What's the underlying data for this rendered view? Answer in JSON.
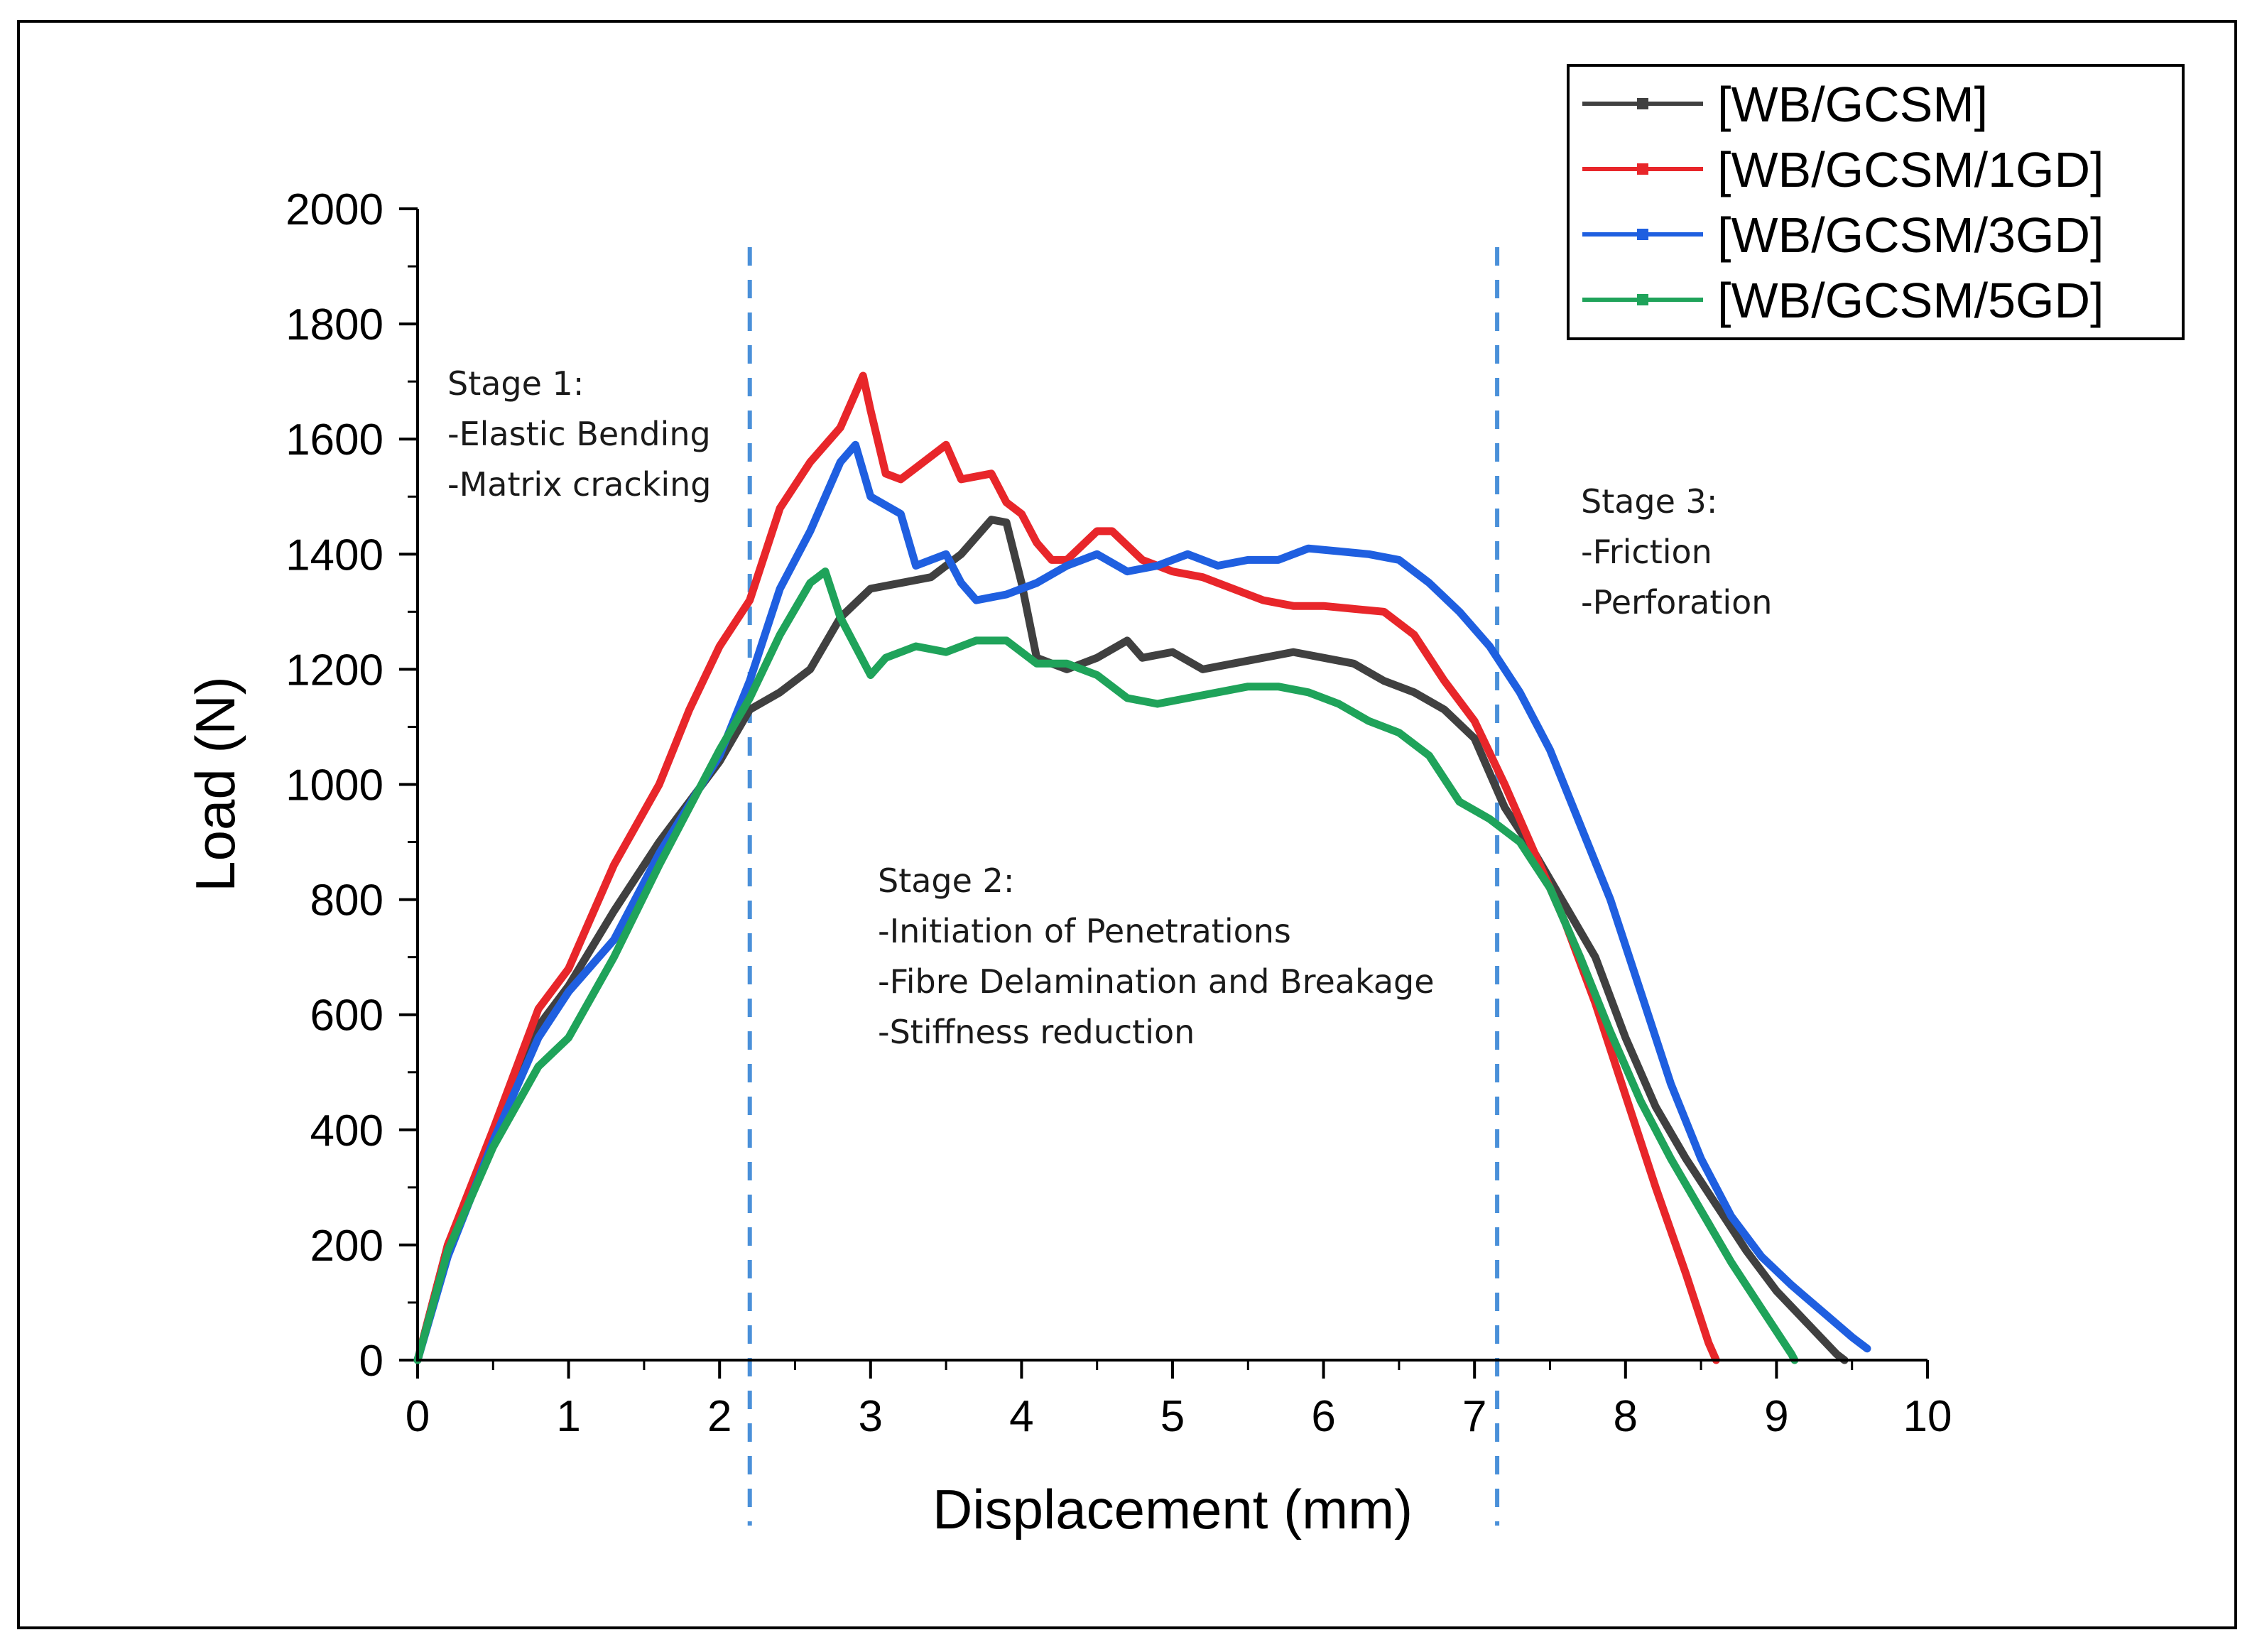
{
  "chart_data": {
    "type": "line",
    "title": "",
    "xlabel": "Displacement (mm)",
    "ylabel": "Load (N)",
    "xlim": [
      0,
      10
    ],
    "ylim": [
      0,
      2000
    ],
    "xticks": [
      "0",
      "1",
      "2",
      "3",
      "4",
      "5",
      "6",
      "7",
      "8",
      "9",
      "10"
    ],
    "yticks": [
      "0",
      "200",
      "400",
      "600",
      "800",
      "1000",
      "1200",
      "1400",
      "1600",
      "1800",
      "2000"
    ],
    "grid": false,
    "legend_position": "top-right",
    "series": [
      {
        "name": "[WB/GCSM]",
        "color": "#404040",
        "points": [
          [
            0,
            0
          ],
          [
            0.2,
            200
          ],
          [
            0.5,
            390
          ],
          [
            0.8,
            580
          ],
          [
            1,
            650
          ],
          [
            1.3,
            780
          ],
          [
            1.6,
            900
          ],
          [
            2,
            1040
          ],
          [
            2.2,
            1130
          ],
          [
            2.4,
            1160
          ],
          [
            2.6,
            1200
          ],
          [
            2.8,
            1290
          ],
          [
            3,
            1340
          ],
          [
            3.2,
            1350
          ],
          [
            3.4,
            1360
          ],
          [
            3.6,
            1400
          ],
          [
            3.8,
            1460
          ],
          [
            3.9,
            1455
          ],
          [
            4,
            1350
          ],
          [
            4.1,
            1220
          ],
          [
            4.3,
            1200
          ],
          [
            4.5,
            1220
          ],
          [
            4.7,
            1250
          ],
          [
            4.8,
            1220
          ],
          [
            5,
            1230
          ],
          [
            5.2,
            1200
          ],
          [
            5.4,
            1210
          ],
          [
            5.6,
            1220
          ],
          [
            5.8,
            1230
          ],
          [
            6,
            1220
          ],
          [
            6.2,
            1210
          ],
          [
            6.4,
            1180
          ],
          [
            6.6,
            1160
          ],
          [
            6.8,
            1130
          ],
          [
            7,
            1080
          ],
          [
            7.2,
            960
          ],
          [
            7.4,
            880
          ],
          [
            7.6,
            790
          ],
          [
            7.8,
            700
          ],
          [
            8,
            560
          ],
          [
            8.2,
            440
          ],
          [
            8.4,
            350
          ],
          [
            8.6,
            270
          ],
          [
            8.8,
            190
          ],
          [
            9,
            120
          ],
          [
            9.2,
            65
          ],
          [
            9.4,
            10
          ],
          [
            9.45,
            0
          ]
        ]
      },
      {
        "name": "[WB/GCSM/1GD]",
        "color": "#e8262a",
        "points": [
          [
            0,
            0
          ],
          [
            0.2,
            200
          ],
          [
            0.5,
            400
          ],
          [
            0.8,
            610
          ],
          [
            1,
            680
          ],
          [
            1.3,
            860
          ],
          [
            1.6,
            1000
          ],
          [
            1.8,
            1130
          ],
          [
            2,
            1240
          ],
          [
            2.2,
            1320
          ],
          [
            2.4,
            1480
          ],
          [
            2.6,
            1560
          ],
          [
            2.8,
            1620
          ],
          [
            2.95,
            1710
          ],
          [
            3,
            1650
          ],
          [
            3.1,
            1540
          ],
          [
            3.2,
            1530
          ],
          [
            3.3,
            1550
          ],
          [
            3.5,
            1590
          ],
          [
            3.6,
            1530
          ],
          [
            3.8,
            1540
          ],
          [
            3.9,
            1490
          ],
          [
            4,
            1470
          ],
          [
            4.1,
            1420
          ],
          [
            4.2,
            1390
          ],
          [
            4.3,
            1390
          ],
          [
            4.5,
            1440
          ],
          [
            4.6,
            1440
          ],
          [
            4.8,
            1390
          ],
          [
            5,
            1370
          ],
          [
            5.2,
            1360
          ],
          [
            5.4,
            1340
          ],
          [
            5.6,
            1320
          ],
          [
            5.8,
            1310
          ],
          [
            6,
            1310
          ],
          [
            6.2,
            1305
          ],
          [
            6.4,
            1300
          ],
          [
            6.6,
            1260
          ],
          [
            6.8,
            1180
          ],
          [
            7,
            1110
          ],
          [
            7.2,
            1000
          ],
          [
            7.4,
            880
          ],
          [
            7.6,
            760
          ],
          [
            7.8,
            620
          ],
          [
            8,
            460
          ],
          [
            8.2,
            300
          ],
          [
            8.4,
            150
          ],
          [
            8.55,
            30
          ],
          [
            8.6,
            0
          ]
        ]
      },
      {
        "name": "[WB/GCSM/3GD]",
        "color": "#1f5fe0",
        "points": [
          [
            0,
            0
          ],
          [
            0.2,
            180
          ],
          [
            0.5,
            380
          ],
          [
            0.8,
            560
          ],
          [
            1,
            640
          ],
          [
            1.3,
            730
          ],
          [
            1.6,
            880
          ],
          [
            2,
            1050
          ],
          [
            2.2,
            1180
          ],
          [
            2.4,
            1340
          ],
          [
            2.6,
            1440
          ],
          [
            2.8,
            1560
          ],
          [
            2.9,
            1590
          ],
          [
            3,
            1500
          ],
          [
            3.2,
            1470
          ],
          [
            3.3,
            1380
          ],
          [
            3.4,
            1390
          ],
          [
            3.5,
            1400
          ],
          [
            3.6,
            1350
          ],
          [
            3.7,
            1320
          ],
          [
            3.9,
            1330
          ],
          [
            4.1,
            1350
          ],
          [
            4.3,
            1380
          ],
          [
            4.5,
            1400
          ],
          [
            4.7,
            1370
          ],
          [
            4.9,
            1380
          ],
          [
            5.1,
            1400
          ],
          [
            5.3,
            1380
          ],
          [
            5.5,
            1390
          ],
          [
            5.7,
            1390
          ],
          [
            5.9,
            1410
          ],
          [
            6.1,
            1405
          ],
          [
            6.3,
            1400
          ],
          [
            6.5,
            1390
          ],
          [
            6.7,
            1350
          ],
          [
            6.9,
            1300
          ],
          [
            7.1,
            1240
          ],
          [
            7.3,
            1160
          ],
          [
            7.5,
            1060
          ],
          [
            7.7,
            930
          ],
          [
            7.9,
            800
          ],
          [
            8.1,
            640
          ],
          [
            8.3,
            480
          ],
          [
            8.5,
            350
          ],
          [
            8.7,
            250
          ],
          [
            8.9,
            180
          ],
          [
            9.1,
            130
          ],
          [
            9.3,
            85
          ],
          [
            9.5,
            40
          ],
          [
            9.6,
            20
          ]
        ]
      },
      {
        "name": "[WB/GCSM/5GD]",
        "color": "#1fa35a",
        "points": [
          [
            0,
            0
          ],
          [
            0.2,
            190
          ],
          [
            0.5,
            370
          ],
          [
            0.8,
            510
          ],
          [
            1,
            560
          ],
          [
            1.3,
            700
          ],
          [
            1.6,
            860
          ],
          [
            2,
            1060
          ],
          [
            2.2,
            1150
          ],
          [
            2.4,
            1260
          ],
          [
            2.6,
            1350
          ],
          [
            2.7,
            1370
          ],
          [
            2.8,
            1290
          ],
          [
            2.9,
            1240
          ],
          [
            3,
            1190
          ],
          [
            3.1,
            1220
          ],
          [
            3.3,
            1240
          ],
          [
            3.5,
            1230
          ],
          [
            3.7,
            1250
          ],
          [
            3.9,
            1250
          ],
          [
            4.1,
            1210
          ],
          [
            4.3,
            1210
          ],
          [
            4.5,
            1190
          ],
          [
            4.7,
            1150
          ],
          [
            4.9,
            1140
          ],
          [
            5.1,
            1150
          ],
          [
            5.3,
            1160
          ],
          [
            5.5,
            1170
          ],
          [
            5.7,
            1170
          ],
          [
            5.9,
            1160
          ],
          [
            6.1,
            1140
          ],
          [
            6.3,
            1110
          ],
          [
            6.5,
            1090
          ],
          [
            6.7,
            1050
          ],
          [
            6.9,
            970
          ],
          [
            7.1,
            940
          ],
          [
            7.3,
            900
          ],
          [
            7.5,
            820
          ],
          [
            7.7,
            700
          ],
          [
            7.9,
            570
          ],
          [
            8.1,
            450
          ],
          [
            8.3,
            350
          ],
          [
            8.5,
            260
          ],
          [
            8.7,
            170
          ],
          [
            8.9,
            90
          ],
          [
            9.1,
            10
          ],
          [
            9.12,
            0
          ]
        ]
      }
    ],
    "stage_dividers_x": [
      2.2,
      7.15
    ],
    "annotations": [
      {
        "id": "stage1",
        "lines": [
          "Stage 1:",
          "-Elastic Bending",
          "-Matrix cracking"
        ]
      },
      {
        "id": "stage2",
        "lines": [
          "Stage 2:",
          "-Initiation of Penetrations",
          "-Fibre Delamination and Breakage",
          "-Stiffness reduction"
        ]
      },
      {
        "id": "stage3",
        "lines": [
          "Stage 3:",
          "-Friction",
          "-Perforation"
        ]
      }
    ]
  }
}
